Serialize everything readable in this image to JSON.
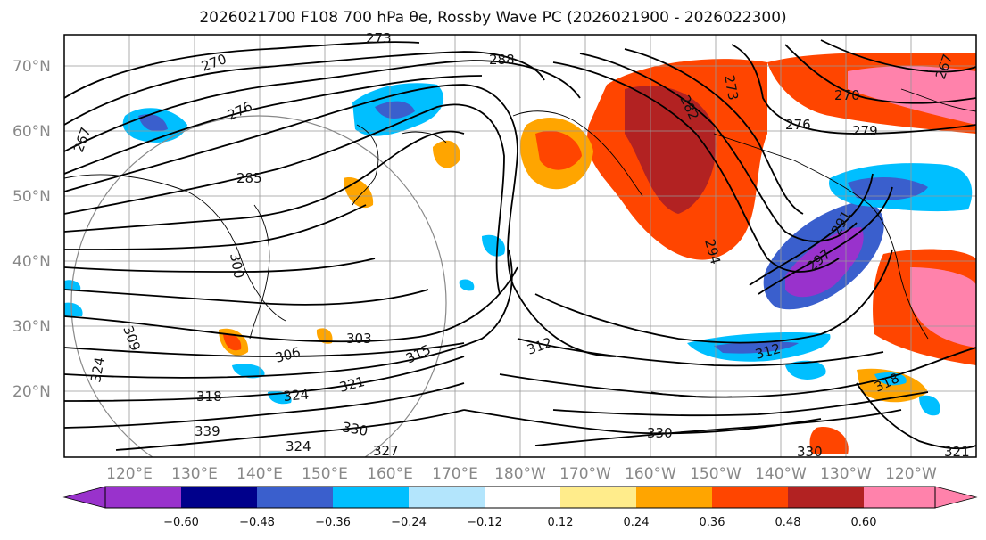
{
  "title_text": "2026021700 F108 700 hPa θe, Rossby Wave PC (2026021900 - 2026022300)",
  "map": {
    "projection": "PlateCarree (Pacific-centered)",
    "lon_range": [
      105,
      245
    ],
    "lat_range": [
      10,
      75
    ],
    "lat_ticks": [
      "70°N",
      "60°N",
      "50°N",
      "40°N",
      "30°N",
      "20°N"
    ],
    "lon_ticks": [
      "120°E",
      "130°E",
      "140°E",
      "150°E",
      "160°E",
      "170°E",
      "180°W",
      "170°W",
      "160°W",
      "150°W",
      "140°W",
      "130°W",
      "120°W"
    ],
    "contour_labels": [
      "273",
      "270",
      "276",
      "288",
      "267",
      "285",
      "300",
      "309",
      "324",
      "318",
      "303",
      "306",
      "315",
      "321",
      "324",
      "330",
      "339",
      "327",
      "324",
      "330",
      "312",
      "312",
      "294",
      "297",
      "291",
      "273",
      "282",
      "276",
      "279",
      "270",
      "267",
      "318",
      "330",
      "321"
    ],
    "grid": true
  },
  "colorbar": {
    "levels": [
      "-0.60",
      "-0.48",
      "-0.36",
      "-0.24",
      "-0.12",
      "0.12",
      "0.24",
      "0.36",
      "0.48",
      "0.60"
    ],
    "colors": [
      "#9932CC",
      "#00008B",
      "#3A5FCD",
      "#00BFFF",
      "#B3E5FC",
      "#FFFFFF",
      "#FFEC8B",
      "#FFA500",
      "#FF4500",
      "#B22222",
      "#FF82AB"
    ]
  }
}
